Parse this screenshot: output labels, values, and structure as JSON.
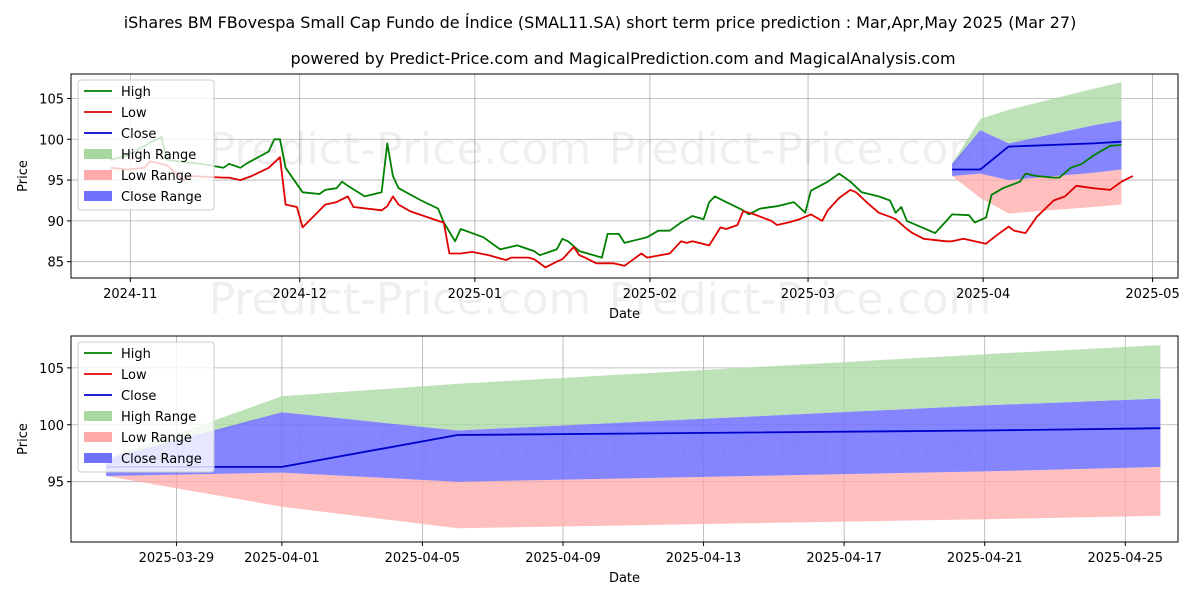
{
  "title": "iShares BM FBovespa Small Cap Fundo de Índice (SMAL11.SA) short term price prediction : Mar,Apr,May 2025 (Mar 27)",
  "subtitle": "powered by Predict-Price.com and MagicalPrediction.com and MagicalAnalysis.com",
  "watermark": "Predict-Price.com",
  "colors": {
    "high": "#008000",
    "low": "#e00000",
    "close": "#0000cc",
    "high_range": "#a8d8a0",
    "low_range": "#ffaaaa",
    "close_range": "#7070ff"
  },
  "legend": [
    "High",
    "Low",
    "Close",
    "High Range",
    "Low Range",
    "Close Range"
  ],
  "chart_data": [
    {
      "type": "line",
      "panel": "top",
      "xlabel": "Date",
      "ylabel": "Price",
      "xlim": [
        "2024-10-22",
        "2025-05-06"
      ],
      "ylim": [
        83,
        108
      ],
      "yticks": [
        85,
        90,
        95,
        100,
        105
      ],
      "xticks": [
        "2024-11",
        "2024-12",
        "2025-01",
        "2025-02",
        "2025-03",
        "2025-04",
        "2025-05"
      ],
      "grid": true,
      "legend_position": "upper-left",
      "series": [
        {
          "name": "High",
          "points": [
            [
              "2024-10-29",
              97.5
            ],
            [
              "2024-11-01",
              98.0
            ],
            [
              "2024-11-04",
              99.2
            ],
            [
              "2024-11-07",
              100.3
            ],
            [
              "2024-11-08",
              97.5
            ],
            [
              "2024-11-11",
              97.2
            ],
            [
              "2024-11-14",
              97.0
            ],
            [
              "2024-11-18",
              96.5
            ],
            [
              "2024-11-19",
              97.0
            ],
            [
              "2024-11-21",
              96.5
            ],
            [
              "2024-11-22",
              97.0
            ],
            [
              "2024-11-26",
              98.5
            ],
            [
              "2024-11-27",
              100.0
            ],
            [
              "2024-11-28",
              100.0
            ],
            [
              "2024-11-29",
              96.5
            ],
            [
              "2024-12-02",
              93.5
            ],
            [
              "2024-12-05",
              93.3
            ],
            [
              "2024-12-06",
              93.8
            ],
            [
              "2024-12-08",
              94.0
            ],
            [
              "2024-12-09",
              94.8
            ],
            [
              "2024-12-10",
              94.3
            ],
            [
              "2024-12-13",
              93.0
            ],
            [
              "2024-12-16",
              93.5
            ],
            [
              "2024-12-17",
              99.5
            ],
            [
              "2024-12-18",
              95.5
            ],
            [
              "2024-12-19",
              94.0
            ],
            [
              "2024-12-23",
              92.5
            ],
            [
              "2024-12-26",
              91.5
            ],
            [
              "2024-12-27",
              89.8
            ],
            [
              "2024-12-29",
              87.5
            ],
            [
              "2024-12-30",
              89.0
            ],
            [
              "2025-01-03",
              88.0
            ],
            [
              "2025-01-06",
              86.5
            ],
            [
              "2025-01-09",
              87.0
            ],
            [
              "2025-01-12",
              86.3
            ],
            [
              "2025-01-13",
              85.8
            ],
            [
              "2025-01-16",
              86.5
            ],
            [
              "2025-01-17",
              87.8
            ],
            [
              "2025-01-18",
              87.5
            ],
            [
              "2025-01-20",
              86.3
            ],
            [
              "2025-01-24",
              85.5
            ],
            [
              "2025-01-25",
              88.4
            ],
            [
              "2025-01-27",
              88.4
            ],
            [
              "2025-01-28",
              87.3
            ],
            [
              "2025-02-01",
              88.0
            ],
            [
              "2025-02-03",
              88.8
            ],
            [
              "2025-02-05",
              88.8
            ],
            [
              "2025-02-07",
              89.8
            ],
            [
              "2025-02-09",
              90.6
            ],
            [
              "2025-02-11",
              90.2
            ],
            [
              "2025-02-12",
              92.3
            ],
            [
              "2025-02-13",
              93.0
            ],
            [
              "2025-02-15",
              92.3
            ],
            [
              "2025-02-18",
              91.3
            ],
            [
              "2025-02-19",
              90.8
            ],
            [
              "2025-02-21",
              91.5
            ],
            [
              "2025-02-24",
              91.8
            ],
            [
              "2025-02-27",
              92.3
            ],
            [
              "2025-03-01",
              91.0
            ],
            [
              "2025-03-02",
              93.7
            ],
            [
              "2025-03-05",
              94.8
            ],
            [
              "2025-03-07",
              95.8
            ],
            [
              "2025-03-09",
              94.8
            ],
            [
              "2025-03-11",
              93.5
            ],
            [
              "2025-03-14",
              93.0
            ],
            [
              "2025-03-16",
              92.5
            ],
            [
              "2025-03-17",
              91.0
            ],
            [
              "2025-03-18",
              91.7
            ],
            [
              "2025-03-19",
              90.0
            ],
            [
              "2025-03-24",
              88.5
            ],
            [
              "2025-03-26",
              90.0
            ],
            [
              "2025-03-27",
              90.8
            ],
            [
              "2025-03-30",
              90.7
            ],
            [
              "2025-03-31",
              89.8
            ],
            [
              "2025-04-02",
              90.4
            ],
            [
              "2025-04-03",
              93.2
            ],
            [
              "2025-04-05",
              94.0
            ],
            [
              "2025-04-08",
              94.8
            ],
            [
              "2025-04-09",
              95.8
            ],
            [
              "2025-04-11",
              95.5
            ],
            [
              "2025-04-14",
              95.3
            ],
            [
              "2025-04-15",
              95.3
            ],
            [
              "2025-04-17",
              96.5
            ],
            [
              "2025-04-19",
              97.0
            ],
            [
              "2025-04-21",
              98.0
            ],
            [
              "2025-04-24",
              99.2
            ],
            [
              "2025-04-26",
              99.3
            ]
          ]
        },
        {
          "name": "Low",
          "points": [
            [
              "2024-10-29",
              96.5
            ],
            [
              "2024-11-01",
              96.3
            ],
            [
              "2024-11-04",
              96.5
            ],
            [
              "2024-11-05",
              97.3
            ],
            [
              "2024-11-08",
              96.8
            ],
            [
              "2024-11-11",
              95.0
            ],
            [
              "2024-11-12",
              95.5
            ],
            [
              "2024-11-18",
              95.3
            ],
            [
              "2024-11-19",
              95.3
            ],
            [
              "2024-11-21",
              95.0
            ],
            [
              "2024-11-23",
              95.5
            ],
            [
              "2024-11-26",
              96.5
            ],
            [
              "2024-11-28",
              97.8
            ],
            [
              "2024-11-29",
              92.0
            ],
            [
              "2024-12-01",
              91.7
            ],
            [
              "2024-12-02",
              89.2
            ],
            [
              "2024-12-06",
              92.0
            ],
            [
              "2024-12-08",
              92.3
            ],
            [
              "2024-12-10",
              93.0
            ],
            [
              "2024-12-11",
              91.7
            ],
            [
              "2024-12-16",
              91.3
            ],
            [
              "2024-12-17",
              91.8
            ],
            [
              "2024-12-18",
              93.0
            ],
            [
              "2024-12-19",
              92.0
            ],
            [
              "2024-12-21",
              91.2
            ],
            [
              "2024-12-26",
              90.0
            ],
            [
              "2024-12-27",
              89.8
            ],
            [
              "2024-12-28",
              86.0
            ],
            [
              "2024-12-30",
              86.0
            ],
            [
              "2025-01-01",
              86.2
            ],
            [
              "2025-01-04",
              85.8
            ],
            [
              "2025-01-07",
              85.2
            ],
            [
              "2025-01-08",
              85.5
            ],
            [
              "2025-01-11",
              85.5
            ],
            [
              "2025-01-12",
              85.3
            ],
            [
              "2025-01-14",
              84.3
            ],
            [
              "2025-01-16",
              85.0
            ],
            [
              "2025-01-17",
              85.3
            ],
            [
              "2025-01-19",
              86.8
            ],
            [
              "2025-01-20",
              85.8
            ],
            [
              "2025-01-21",
              85.5
            ],
            [
              "2025-01-23",
              84.8
            ],
            [
              "2025-01-26",
              84.8
            ],
            [
              "2025-01-28",
              84.5
            ],
            [
              "2025-01-31",
              86.0
            ],
            [
              "2025-02-01",
              85.5
            ],
            [
              "2025-02-05",
              86.0
            ],
            [
              "2025-02-07",
              87.5
            ],
            [
              "2025-02-08",
              87.3
            ],
            [
              "2025-02-09",
              87.5
            ],
            [
              "2025-02-12",
              87.0
            ],
            [
              "2025-02-14",
              89.2
            ],
            [
              "2025-02-15",
              89.0
            ],
            [
              "2025-02-17",
              89.5
            ],
            [
              "2025-02-18",
              91.2
            ],
            [
              "2025-02-20",
              90.8
            ],
            [
              "2025-02-23",
              90.0
            ],
            [
              "2025-02-24",
              89.5
            ],
            [
              "2025-02-26",
              89.8
            ],
            [
              "2025-02-28",
              90.2
            ],
            [
              "2025-03-02",
              90.8
            ],
            [
              "2025-03-04",
              90.0
            ],
            [
              "2025-03-05",
              91.3
            ],
            [
              "2025-03-07",
              92.8
            ],
            [
              "2025-03-09",
              93.8
            ],
            [
              "2025-03-10",
              93.5
            ],
            [
              "2025-03-12",
              92.2
            ],
            [
              "2025-03-14",
              91.0
            ],
            [
              "2025-03-16",
              90.5
            ],
            [
              "2025-03-17",
              90.2
            ],
            [
              "2025-03-19",
              89.0
            ],
            [
              "2025-03-20",
              88.5
            ],
            [
              "2025-03-22",
              87.8
            ],
            [
              "2025-03-26",
              87.5
            ],
            [
              "2025-03-27",
              87.5
            ],
            [
              "2025-03-29",
              87.8
            ],
            [
              "2025-04-02",
              87.2
            ],
            [
              "2025-04-04",
              88.3
            ],
            [
              "2025-04-06",
              89.3
            ],
            [
              "2025-04-07",
              88.8
            ],
            [
              "2025-04-09",
              88.5
            ],
            [
              "2025-04-11",
              90.5
            ],
            [
              "2025-04-14",
              92.5
            ],
            [
              "2025-04-16",
              93.0
            ],
            [
              "2025-04-18",
              94.3
            ],
            [
              "2025-04-21",
              94.0
            ],
            [
              "2025-04-24",
              93.8
            ],
            [
              "2025-04-26",
              94.8
            ],
            [
              "2025-04-28",
              95.5
            ]
          ]
        },
        {
          "name": "Close",
          "points": [
            [
              "2025-03-27",
              96.3
            ],
            [
              "2025-04-01",
              96.3
            ],
            [
              "2025-04-06",
              99.1
            ],
            [
              "2025-04-21",
              99.5
            ],
            [
              "2025-04-26",
              99.7
            ]
          ]
        }
      ],
      "bands": [
        {
          "name": "High Range",
          "x": [
            "2025-03-27",
            "2025-04-01",
            "2025-04-06",
            "2025-04-21",
            "2025-04-26"
          ],
          "lower": [
            96.3,
            101.1,
            99.5,
            101.7,
            102.3
          ],
          "upper": [
            97.0,
            102.5,
            103.6,
            106.2,
            107.0
          ]
        },
        {
          "name": "Low Range",
          "x": [
            "2025-03-27",
            "2025-04-01",
            "2025-04-06",
            "2025-04-21",
            "2025-04-26"
          ],
          "lower": [
            95.5,
            92.8,
            90.9,
            91.7,
            92.0
          ],
          "upper": [
            95.5,
            95.8,
            95.0,
            95.9,
            96.3
          ]
        },
        {
          "name": "Close Range",
          "x": [
            "2025-03-27",
            "2025-04-01",
            "2025-04-06",
            "2025-04-21",
            "2025-04-26"
          ],
          "lower": [
            95.5,
            95.8,
            95.0,
            95.9,
            96.3
          ],
          "upper": [
            97.0,
            101.1,
            99.5,
            101.7,
            102.3
          ]
        }
      ]
    },
    {
      "type": "line",
      "panel": "bottom",
      "xlabel": "Date",
      "ylabel": "Price",
      "xlim": [
        "2025-03-26",
        "2025-04-26.5"
      ],
      "ylim": [
        89.7,
        107.8
      ],
      "yticks": [
        95,
        100,
        105
      ],
      "xticks": [
        "2025-03-29",
        "2025-04-01",
        "2025-04-05",
        "2025-04-09",
        "2025-04-13",
        "2025-04-17",
        "2025-04-21",
        "2025-04-25"
      ],
      "grid": true,
      "legend_position": "upper-left",
      "series": [
        {
          "name": "Close",
          "x": [
            "2025-03-27",
            "2025-04-01",
            "2025-04-06",
            "2025-04-21",
            "2025-04-26"
          ],
          "values": [
            96.3,
            96.3,
            99.1,
            99.5,
            99.7
          ]
        }
      ],
      "bands": [
        {
          "name": "High Range",
          "x": [
            "2025-03-27",
            "2025-04-01",
            "2025-04-06",
            "2025-04-21",
            "2025-04-26"
          ],
          "lower": [
            96.3,
            101.1,
            99.5,
            101.7,
            102.3
          ],
          "upper": [
            97.0,
            102.5,
            103.6,
            106.2,
            107.0
          ]
        },
        {
          "name": "Low Range",
          "x": [
            "2025-03-27",
            "2025-04-01",
            "2025-04-06",
            "2025-04-21",
            "2025-04-26"
          ],
          "lower": [
            95.5,
            92.8,
            90.9,
            91.7,
            92.0
          ],
          "upper": [
            95.5,
            95.8,
            95.0,
            95.9,
            96.3
          ]
        },
        {
          "name": "Close Range",
          "x": [
            "2025-03-27",
            "2025-04-01",
            "2025-04-06",
            "2025-04-21",
            "2025-04-26"
          ],
          "lower": [
            95.5,
            95.8,
            95.0,
            95.9,
            96.3
          ],
          "upper": [
            97.0,
            101.1,
            99.5,
            101.7,
            102.3
          ]
        }
      ]
    }
  ]
}
